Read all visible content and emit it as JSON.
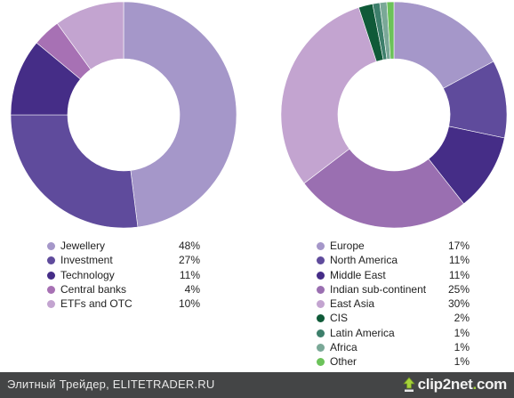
{
  "chart_data": [
    {
      "type": "pie",
      "donut": true,
      "labels": [
        "Jewellery",
        "Investment",
        "Technology",
        "Central banks",
        "ETFs and OTC"
      ],
      "values": [
        48,
        27,
        11,
        4,
        10
      ],
      "value_labels": [
        "48%",
        "27%",
        "11%",
        "4%",
        "10%"
      ],
      "colors": [
        "#a597c9",
        "#5f4b9c",
        "#452d87",
        "#a771b4",
        "#c3a4d0"
      ],
      "legend_position": "bottom"
    },
    {
      "type": "pie",
      "donut": true,
      "labels": [
        "Europe",
        "North America",
        "Middle East",
        "Indian sub-continent",
        "East Asia",
        "CIS",
        "Latin America",
        "Africa",
        "Other"
      ],
      "values": [
        17,
        11,
        11,
        25,
        30,
        2,
        1,
        1,
        1
      ],
      "value_labels": [
        "17%",
        "11%",
        "11%",
        "25%",
        "30%",
        "2%",
        "1%",
        "1%",
        "1%"
      ],
      "colors": [
        "#a597c9",
        "#5f4b9c",
        "#452d87",
        "#9a6fb1",
        "#c3a4d0",
        "#0f5a38",
        "#3d7f6b",
        "#7aa897",
        "#6cc25a"
      ],
      "legend_position": "bottom"
    }
  ],
  "footer": {
    "text": "Элитный Трейдер, ELITETRADER.RU",
    "brand_main": "clip2net",
    "brand_dot": ".",
    "brand_tld": "com",
    "brand_accent": "#a6d23a"
  }
}
